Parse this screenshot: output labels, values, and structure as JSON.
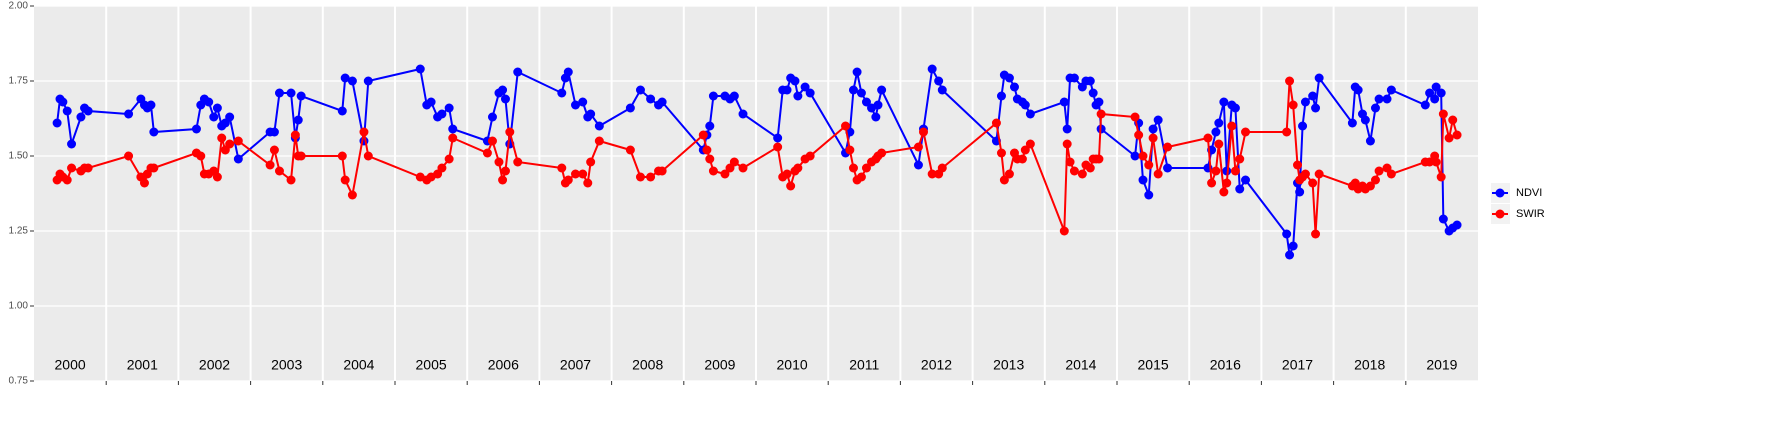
{
  "chart_data": {
    "type": "line",
    "x": [
      2000.32,
      2000.36,
      2000.4,
      2000.46,
      2000.52,
      2000.65,
      2000.7,
      2000.75,
      2001.31,
      2001.48,
      2001.53,
      2001.57,
      2001.62,
      2001.66,
      2002.25,
      2002.31,
      2002.36,
      2002.42,
      2002.49,
      2002.54,
      2002.6,
      2002.65,
      2002.71,
      2002.83,
      2003.27,
      2003.33,
      2003.4,
      2003.56,
      2003.62,
      2003.66,
      2003.7,
      2004.27,
      2004.31,
      2004.41,
      2004.57,
      2004.63,
      2005.35,
      2005.44,
      2005.5,
      2005.59,
      2005.65,
      2005.75,
      2005.8,
      2006.28,
      2006.35,
      2006.44,
      2006.49,
      2006.53,
      2006.59,
      2006.7,
      2007.31,
      2007.36,
      2007.4,
      2007.5,
      2007.6,
      2007.67,
      2007.71,
      2007.83,
      2008.26,
      2008.4,
      2008.54,
      2008.65,
      2008.7,
      2009.27,
      2009.32,
      2009.36,
      2009.41,
      2009.57,
      2009.64,
      2009.7,
      2009.82,
      2010.3,
      2010.37,
      2010.43,
      2010.48,
      2010.54,
      2010.58,
      2010.68,
      2010.75,
      2011.24,
      2011.3,
      2011.35,
      2011.4,
      2011.46,
      2011.53,
      2011.6,
      2011.66,
      2011.69,
      2011.74,
      2012.25,
      2012.32,
      2012.44,
      2012.53,
      2012.58,
      2013.33,
      2013.4,
      2013.44,
      2013.51,
      2013.58,
      2013.62,
      2013.69,
      2013.73,
      2013.8,
      2014.27,
      2014.31,
      2014.35,
      2014.41,
      2014.52,
      2014.57,
      2014.63,
      2014.67,
      2014.71,
      2014.75,
      2014.78,
      2015.25,
      2015.3,
      2015.36,
      2015.44,
      2015.5,
      2015.57,
      2015.7,
      2016.26,
      2016.31,
      2016.37,
      2016.41,
      2016.48,
      2016.52,
      2016.59,
      2016.64,
      2016.7,
      2016.78,
      2017.35,
      2017.39,
      2017.44,
      2017.5,
      2017.53,
      2017.57,
      2017.61,
      2017.71,
      2017.75,
      2017.8,
      2018.26,
      2018.3,
      2018.34,
      2018.4,
      2018.44,
      2018.51,
      2018.58,
      2018.63,
      2018.74,
      2018.8,
      2019.27,
      2019.33,
      2019.4,
      2019.42,
      2019.49,
      2019.52,
      2019.6,
      2019.65,
      2019.71
    ],
    "series": [
      {
        "name": "NDVI",
        "color": "#0000ff",
        "values": [
          1.61,
          1.69,
          1.68,
          1.65,
          1.54,
          1.63,
          1.66,
          1.65,
          1.64,
          1.69,
          1.67,
          1.66,
          1.67,
          1.58,
          1.59,
          1.67,
          1.69,
          1.68,
          1.63,
          1.66,
          1.6,
          1.61,
          1.63,
          1.49,
          1.58,
          1.58,
          1.71,
          1.71,
          1.56,
          1.62,
          1.7,
          1.65,
          1.76,
          1.75,
          1.55,
          1.75,
          1.79,
          1.67,
          1.68,
          1.63,
          1.64,
          1.66,
          1.59,
          1.55,
          1.63,
          1.71,
          1.72,
          1.69,
          1.54,
          1.78,
          1.71,
          1.76,
          1.78,
          1.67,
          1.68,
          1.63,
          1.64,
          1.6,
          1.66,
          1.72,
          1.69,
          1.67,
          1.68,
          1.52,
          1.57,
          1.6,
          1.7,
          1.7,
          1.69,
          1.7,
          1.64,
          1.56,
          1.72,
          1.72,
          1.76,
          1.75,
          1.7,
          1.73,
          1.71,
          1.51,
          1.58,
          1.72,
          1.78,
          1.71,
          1.68,
          1.66,
          1.63,
          1.67,
          1.72,
          1.47,
          1.59,
          1.79,
          1.75,
          1.72,
          1.55,
          1.7,
          1.77,
          1.76,
          1.73,
          1.69,
          1.68,
          1.67,
          1.64,
          1.68,
          1.59,
          1.76,
          1.76,
          1.73,
          1.75,
          1.75,
          1.71,
          1.67,
          1.68,
          1.59,
          1.5,
          1.61,
          1.42,
          1.37,
          1.59,
          1.62,
          1.46,
          1.46,
          1.52,
          1.58,
          1.61,
          1.68,
          1.45,
          1.67,
          1.66,
          1.39,
          1.42,
          1.24,
          1.17,
          1.2,
          1.41,
          1.38,
          1.6,
          1.68,
          1.7,
          1.66,
          1.76,
          1.61,
          1.73,
          1.72,
          1.64,
          1.62,
          1.55,
          1.66,
          1.69,
          1.69,
          1.72,
          1.67,
          1.71,
          1.69,
          1.73,
          1.71,
          1.29,
          1.25,
          1.26,
          1.27
        ]
      },
      {
        "name": "SWIR",
        "color": "#ff0000",
        "values": [
          1.42,
          1.44,
          1.43,
          1.42,
          1.46,
          1.45,
          1.46,
          1.46,
          1.5,
          1.43,
          1.41,
          1.44,
          1.46,
          1.46,
          1.51,
          1.5,
          1.44,
          1.44,
          1.45,
          1.43,
          1.56,
          1.52,
          1.54,
          1.55,
          1.47,
          1.52,
          1.45,
          1.42,
          1.57,
          1.5,
          1.5,
          1.5,
          1.42,
          1.37,
          1.58,
          1.5,
          1.43,
          1.42,
          1.43,
          1.44,
          1.46,
          1.49,
          1.56,
          1.51,
          1.55,
          1.48,
          1.42,
          1.45,
          1.58,
          1.48,
          1.46,
          1.41,
          1.42,
          1.44,
          1.44,
          1.41,
          1.48,
          1.55,
          1.52,
          1.43,
          1.43,
          1.45,
          1.45,
          1.57,
          1.52,
          1.49,
          1.45,
          1.44,
          1.46,
          1.48,
          1.46,
          1.53,
          1.43,
          1.44,
          1.4,
          1.45,
          1.46,
          1.49,
          1.5,
          1.6,
          1.52,
          1.46,
          1.42,
          1.43,
          1.46,
          1.48,
          1.49,
          1.5,
          1.51,
          1.53,
          1.58,
          1.44,
          1.44,
          1.46,
          1.61,
          1.51,
          1.42,
          1.44,
          1.51,
          1.49,
          1.49,
          1.52,
          1.54,
          1.25,
          1.54,
          1.48,
          1.45,
          1.44,
          1.47,
          1.46,
          1.49,
          1.49,
          1.49,
          1.64,
          1.63,
          1.57,
          1.5,
          1.47,
          1.56,
          1.44,
          1.53,
          1.56,
          1.41,
          1.45,
          1.54,
          1.38,
          1.41,
          1.6,
          1.45,
          1.49,
          1.58,
          1.58,
          1.75,
          1.67,
          1.47,
          1.42,
          1.43,
          1.44,
          1.41,
          1.24,
          1.44,
          1.4,
          1.41,
          1.39,
          1.4,
          1.39,
          1.4,
          1.42,
          1.45,
          1.46,
          1.44,
          1.48,
          1.48,
          1.5,
          1.48,
          1.43,
          1.64,
          1.56,
          1.62,
          1.57
        ]
      }
    ],
    "xlim": [
      2000,
      2020
    ],
    "xticks": [
      {
        "value": 2000.5,
        "label": "2000"
      },
      {
        "value": 2001.5,
        "label": "2001"
      },
      {
        "value": 2002.5,
        "label": "2002"
      },
      {
        "value": 2003.5,
        "label": "2003"
      },
      {
        "value": 2004.5,
        "label": "2004"
      },
      {
        "value": 2005.5,
        "label": "2005"
      },
      {
        "value": 2006.5,
        "label": "2006"
      },
      {
        "value": 2007.5,
        "label": "2007"
      },
      {
        "value": 2008.5,
        "label": "2008"
      },
      {
        "value": 2009.5,
        "label": "2009"
      },
      {
        "value": 2010.5,
        "label": "2010"
      },
      {
        "value": 2011.5,
        "label": "2011"
      },
      {
        "value": 2012.5,
        "label": "2012"
      },
      {
        "value": 2013.5,
        "label": "2013"
      },
      {
        "value": 2014.5,
        "label": "2014"
      },
      {
        "value": 2015.5,
        "label": "2015"
      },
      {
        "value": 2016.5,
        "label": "2016"
      },
      {
        "value": 2017.5,
        "label": "2017"
      },
      {
        "value": 2018.5,
        "label": "2018"
      },
      {
        "value": 2019.5,
        "label": "2019"
      }
    ],
    "year_boundaries": [
      2001,
      2002,
      2003,
      2004,
      2005,
      2006,
      2007,
      2008,
      2009,
      2010,
      2011,
      2012,
      2013,
      2014,
      2015,
      2016,
      2017,
      2018,
      2019
    ],
    "ylim": [
      0.75,
      2.0
    ],
    "yticks": [
      0.75,
      {
        "value": 1.0,
        "label": "1.00"
      },
      1.25,
      {
        "value": 1.5,
        "label": "1.50"
      },
      1.75,
      {
        "value": 2.0,
        "label": "2.00"
      }
    ],
    "grid": true,
    "legend": "right"
  }
}
